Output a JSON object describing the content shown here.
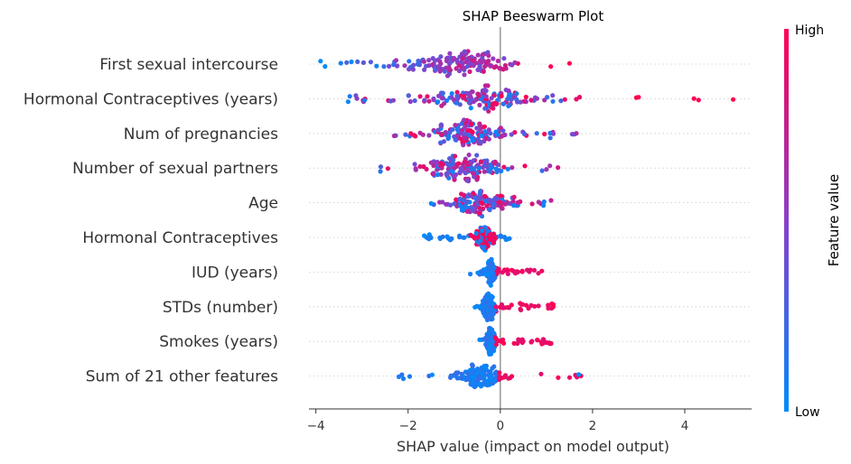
{
  "chart_data": {
    "type": "scatter",
    "subtype": "beeswarm",
    "title": "SHAP Beeswarm Plot",
    "xlabel": "SHAP value (impact on model output)",
    "ylabel": "",
    "xlim": [
      -4.15,
      5.45
    ],
    "xticks": [
      -4,
      -2,
      0,
      2,
      4
    ],
    "xtick_labels": [
      "−4",
      "−2",
      "0",
      "2",
      "4"
    ],
    "zero_line": 0,
    "colorbar": {
      "label": "Feature value",
      "high_label": "High",
      "low_label": "Low",
      "low_color": "#008bfb",
      "mid_color": "#8a3fc9",
      "high_color": "#ff0051"
    },
    "features": [
      {
        "name": "First sexual intercourse",
        "min": -3.9,
        "max": 1.5,
        "center": -1.0,
        "spread": 1.1,
        "color_mode": "negative-high",
        "outliers": []
      },
      {
        "name": "Hormonal Contraceptives (years)",
        "min": -3.3,
        "max": 1.4,
        "center": -0.4,
        "spread": 1.0,
        "color_mode": "mixed",
        "outliers": [
          [
            1.65,
            0.9
          ],
          [
            1.72,
            0.9
          ],
          [
            2.95,
            1.0
          ],
          [
            3.0,
            1.0
          ],
          [
            4.2,
            1.0
          ],
          [
            4.3,
            1.0
          ],
          [
            5.05,
            1.0
          ]
        ]
      },
      {
        "name": "Num of pregnancies",
        "min": -2.3,
        "max": 1.65,
        "center": -0.8,
        "spread": 0.7,
        "color_mode": "mixed",
        "outliers": []
      },
      {
        "name": "Number of sexual partners",
        "min": -2.6,
        "max": 1.25,
        "center": -0.8,
        "spread": 0.7,
        "color_mode": "mixed",
        "outliers": []
      },
      {
        "name": "Age",
        "min": -1.5,
        "max": 1.1,
        "center": -0.4,
        "spread": 0.55,
        "color_mode": "mixed",
        "outliers": []
      },
      {
        "name": "Hormonal Contraceptives",
        "min": -1.6,
        "max": 0.2,
        "center": -0.35,
        "spread": 0.2,
        "color_mode": "high-cluster",
        "outliers": [
          [
            -1.65,
            0.0
          ]
        ]
      },
      {
        "name": "IUD (years)",
        "min": -0.65,
        "max": 0.9,
        "center": -0.2,
        "spread": 0.12,
        "color_mode": "right-high",
        "outliers": []
      },
      {
        "name": "STDs (number)",
        "min": -0.55,
        "max": 1.15,
        "center": -0.25,
        "spread": 0.15,
        "color_mode": "right-high",
        "outliers": []
      },
      {
        "name": "Smokes (years)",
        "min": -0.45,
        "max": 1.1,
        "center": -0.2,
        "spread": 0.1,
        "color_mode": "right-high",
        "outliers": []
      },
      {
        "name": "Sum of 21 other features",
        "min": -2.2,
        "max": 1.75,
        "center": -0.45,
        "spread": 0.45,
        "color_mode": "right-high",
        "outliers": [
          [
            1.7,
            0.0
          ]
        ]
      }
    ]
  }
}
